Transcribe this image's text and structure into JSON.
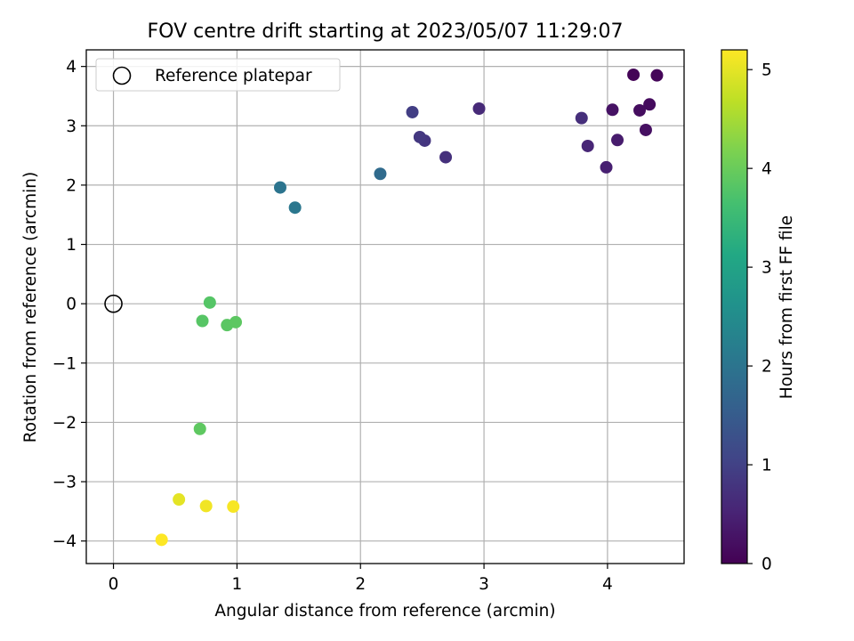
{
  "chart_data": {
    "type": "scatter",
    "title": "FOV centre drift starting at 2023/05/07 11:29:07",
    "xlabel": "Angular distance from reference (arcmin)",
    "ylabel": "Rotation from reference (arcmin)",
    "xlim": [
      -0.22,
      4.62
    ],
    "ylim": [
      -4.38,
      4.28
    ],
    "xticks": [
      0,
      1,
      2,
      3,
      4
    ],
    "yticks": [
      -4,
      -3,
      -2,
      -1,
      0,
      1,
      2,
      3,
      4
    ],
    "grid": true,
    "legend": {
      "position": "top-left",
      "entries": [
        "Reference platepar"
      ]
    },
    "reference_point": {
      "x": 0,
      "y": 0,
      "label": "Reference platepar"
    },
    "colorbar": {
      "label": "Hours from first FF file",
      "colormap": "viridis",
      "range": [
        0,
        5.2
      ],
      "ticks": [
        0,
        1,
        2,
        3,
        4,
        5
      ]
    },
    "points": [
      {
        "x": 4.21,
        "y": 3.86,
        "hours": 0.05
      },
      {
        "x": 4.4,
        "y": 3.85,
        "hours": 0.08
      },
      {
        "x": 4.34,
        "y": 3.36,
        "hours": 0.15
      },
      {
        "x": 4.26,
        "y": 3.26,
        "hours": 0.18
      },
      {
        "x": 4.04,
        "y": 3.27,
        "hours": 0.25
      },
      {
        "x": 4.31,
        "y": 2.93,
        "hours": 0.22
      },
      {
        "x": 4.08,
        "y": 2.76,
        "hours": 0.4
      },
      {
        "x": 3.99,
        "y": 2.3,
        "hours": 0.45
      },
      {
        "x": 3.84,
        "y": 2.66,
        "hours": 0.55
      },
      {
        "x": 3.79,
        "y": 3.13,
        "hours": 0.7
      },
      {
        "x": 2.96,
        "y": 3.29,
        "hours": 0.62
      },
      {
        "x": 2.69,
        "y": 2.47,
        "hours": 0.72
      },
      {
        "x": 2.52,
        "y": 2.75,
        "hours": 0.8
      },
      {
        "x": 2.48,
        "y": 2.81,
        "hours": 0.85
      },
      {
        "x": 2.42,
        "y": 3.23,
        "hours": 0.95
      },
      {
        "x": 2.16,
        "y": 2.19,
        "hours": 1.8
      },
      {
        "x": 1.35,
        "y": 1.96,
        "hours": 2.0
      },
      {
        "x": 1.47,
        "y": 1.62,
        "hours": 2.05
      },
      {
        "x": 0.78,
        "y": 0.02,
        "hours": 3.8
      },
      {
        "x": 0.72,
        "y": -0.29,
        "hours": 3.82
      },
      {
        "x": 0.92,
        "y": -0.36,
        "hours": 3.85
      },
      {
        "x": 0.99,
        "y": -0.31,
        "hours": 3.88
      },
      {
        "x": 0.7,
        "y": -2.11,
        "hours": 3.9
      },
      {
        "x": 0.53,
        "y": -3.3,
        "hours": 5.0
      },
      {
        "x": 0.75,
        "y": -3.41,
        "hours": 5.1
      },
      {
        "x": 0.97,
        "y": -3.42,
        "hours": 5.15
      },
      {
        "x": 0.39,
        "y": -3.98,
        "hours": 5.2
      }
    ]
  }
}
